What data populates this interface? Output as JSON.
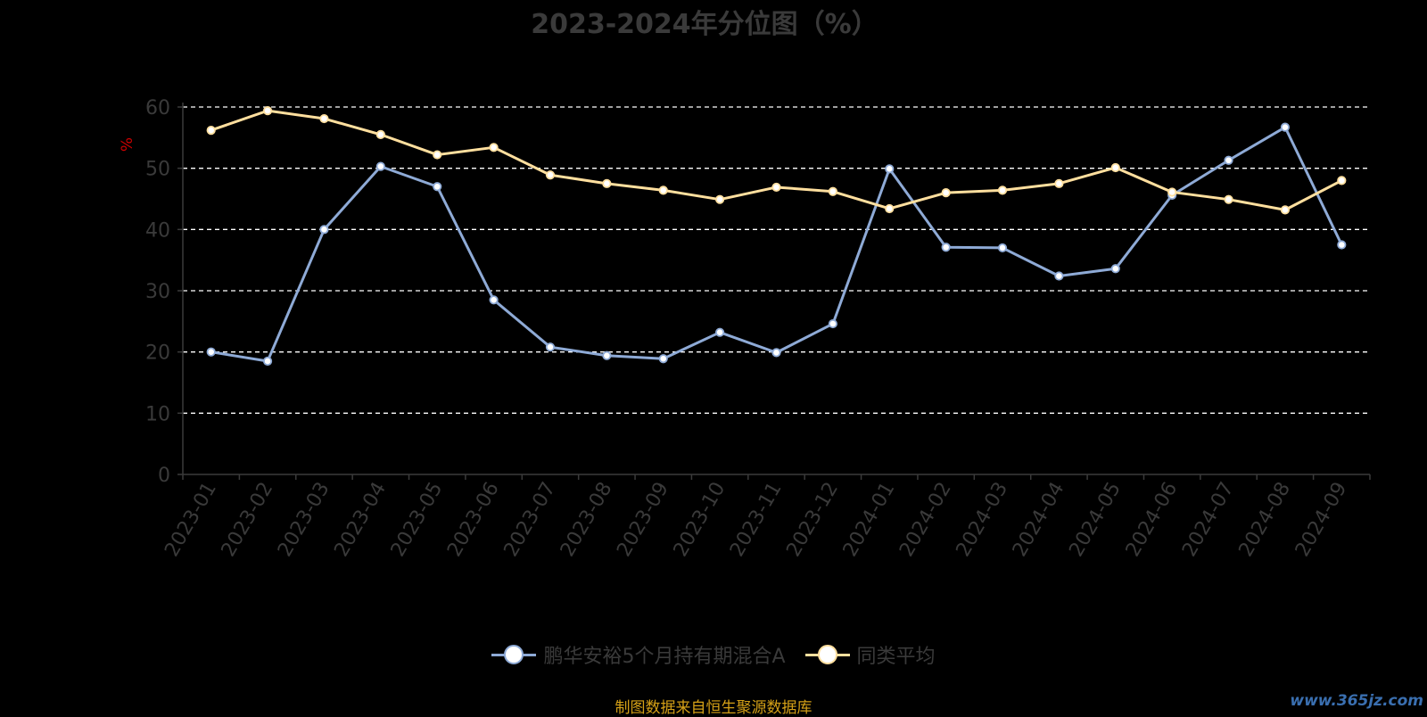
{
  "title": "2023-2024年分位图（%）",
  "source_note": "制图数据来自恒生聚源数据库",
  "watermark": "www.365jz.com",
  "chart_data": {
    "type": "line",
    "title": "2023-2024年分位图（%）",
    "ylabel": "%",
    "xlabel": "",
    "ylim": [
      0,
      60
    ],
    "yticks": [
      0,
      10,
      20,
      30,
      40,
      50,
      60
    ],
    "grid": true,
    "legend_position": "bottom",
    "categories": [
      "2023-01",
      "2023-02",
      "2023-03",
      "2023-04",
      "2023-05",
      "2023-06",
      "2023-07",
      "2023-08",
      "2023-09",
      "2023-10",
      "2023-11",
      "2023-12",
      "2024-01",
      "2024-02",
      "2024-03",
      "2024-04",
      "2024-05",
      "2024-06",
      "2024-07",
      "2024-08",
      "2024-09"
    ],
    "series": [
      {
        "name": "鹏华安裕5个月持有期混合A",
        "color": "#8eaad6",
        "values": [
          20.0,
          18.5,
          40.0,
          50.3,
          47.0,
          28.5,
          20.8,
          19.4,
          18.9,
          23.2,
          19.9,
          24.6,
          49.9,
          37.1,
          37.0,
          32.4,
          33.6,
          45.6,
          51.3,
          56.7,
          37.5
        ]
      },
      {
        "name": "同类平均",
        "color": "#ffdf9e",
        "values": [
          56.2,
          59.4,
          58.1,
          55.5,
          52.2,
          53.4,
          48.9,
          47.5,
          46.4,
          44.9,
          46.9,
          46.2,
          43.4,
          46.0,
          46.4,
          47.5,
          50.1,
          46.1,
          44.9,
          43.2,
          48.0
        ]
      }
    ]
  }
}
